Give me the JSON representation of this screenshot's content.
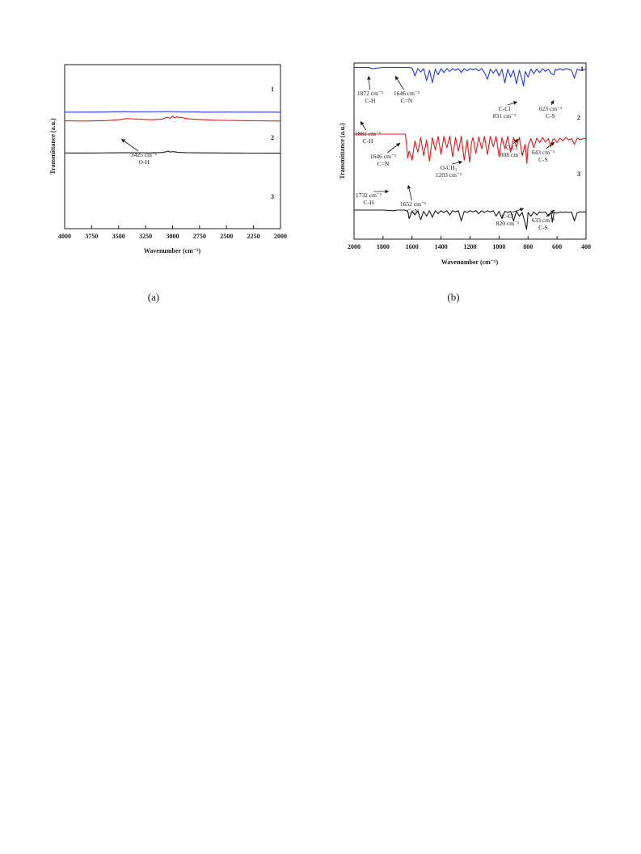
{
  "chart_data": [
    {
      "type": "line",
      "caption": "(a)",
      "xlabel": "Wavenumber (cm⁻¹)",
      "ylabel": "Transmittance (a.u.)",
      "xlim": [
        4000,
        2000
      ],
      "x_reversed": true,
      "xticks": [
        "4000",
        "3750",
        "3500",
        "3250",
        "3000",
        "2750",
        "2500",
        "2250",
        "2000"
      ],
      "grid": false,
      "series": [
        {
          "name": "1",
          "color": "#1f3be8",
          "x": [
            4000,
            3800,
            3600,
            3500,
            3450,
            3400,
            3300,
            3200,
            3100,
            3050,
            3000,
            2950,
            2900,
            2800,
            2700,
            2600,
            2500,
            2400,
            2300,
            2200,
            2100,
            2000
          ],
          "y": [
            0.86,
            0.86,
            0.857,
            0.854,
            0.852,
            0.854,
            0.856,
            0.856,
            0.852,
            0.85,
            0.853,
            0.856,
            0.857,
            0.858,
            0.86,
            0.86,
            0.859,
            0.86,
            0.86,
            0.86,
            0.86,
            0.86
          ]
        },
        {
          "name": "2",
          "color": "#e81818",
          "x": [
            4000,
            3800,
            3600,
            3500,
            3450,
            3425,
            3400,
            3300,
            3200,
            3100,
            3050,
            3020,
            3000,
            2980,
            2960,
            2940,
            2920,
            2900,
            2880,
            2850,
            2800,
            2700,
            2600,
            2500,
            2400,
            2300,
            2200,
            2100,
            2000
          ],
          "y": [
            0.495,
            0.497,
            0.49,
            0.478,
            0.465,
            0.46,
            0.462,
            0.47,
            0.478,
            0.47,
            0.44,
            0.455,
            0.42,
            0.45,
            0.43,
            0.445,
            0.44,
            0.45,
            0.455,
            0.465,
            0.47,
            0.478,
            0.485,
            0.488,
            0.49,
            0.492,
            0.494,
            0.496,
            0.497
          ]
        },
        {
          "name": "3",
          "color": "#1a1a1a",
          "x": [
            4000,
            3800,
            3600,
            3500,
            3400,
            3300,
            3200,
            3100,
            3060,
            3040,
            3020,
            3000,
            2950,
            2900,
            2850,
            2800,
            2700,
            2600,
            2500,
            2400,
            2300,
            2200,
            2100,
            2000
          ],
          "y": [
            0.18,
            0.18,
            0.178,
            0.176,
            0.176,
            0.178,
            0.178,
            0.172,
            0.16,
            0.15,
            0.165,
            0.158,
            0.17,
            0.172,
            0.175,
            0.176,
            0.178,
            0.179,
            0.18,
            0.18,
            0.181,
            0.181,
            0.182,
            0.182
          ]
        }
      ],
      "annotations": [
        {
          "lines": [
            "3425 cm⁻¹",
            "O-H"
          ],
          "x": 3425,
          "series": "2"
        }
      ]
    },
    {
      "type": "line",
      "caption": "(b)",
      "xlabel": "Wavenumber (cm⁻¹)",
      "ylabel": "Transmittance (a.u.)",
      "xlim": [
        2000,
        400
      ],
      "x_reversed": true,
      "xticks": [
        "2000",
        "1800",
        "1600",
        "1400",
        "1200",
        "1000",
        "800",
        "600",
        "400"
      ],
      "grid": false,
      "series": [
        {
          "name": "1",
          "color": "#1f3be8",
          "x": [
            2000,
            1900,
            1872,
            1800,
            1700,
            1646,
            1620,
            1600,
            1580,
            1560,
            1540,
            1520,
            1500,
            1480,
            1460,
            1440,
            1420,
            1400,
            1380,
            1360,
            1340,
            1320,
            1300,
            1280,
            1260,
            1240,
            1220,
            1200,
            1180,
            1160,
            1140,
            1120,
            1100,
            1080,
            1060,
            1040,
            1020,
            1000,
            980,
            960,
            940,
            920,
            900,
            880,
            860,
            840,
            831,
            820,
            800,
            780,
            760,
            740,
            720,
            700,
            680,
            660,
            640,
            623,
            610,
            600,
            580,
            560,
            540,
            520,
            500,
            480,
            460,
            440,
            420,
            400
          ],
          "y": [
            0.95,
            0.95,
            0.93,
            0.95,
            0.95,
            0.95,
            0.95,
            0.94,
            0.8,
            0.93,
            0.87,
            0.93,
            0.72,
            0.9,
            0.68,
            0.92,
            0.82,
            0.93,
            0.86,
            0.93,
            0.88,
            0.93,
            0.9,
            0.93,
            0.86,
            0.93,
            0.89,
            0.93,
            0.91,
            0.93,
            0.89,
            0.93,
            0.86,
            0.74,
            0.92,
            0.85,
            0.92,
            0.8,
            0.92,
            0.68,
            0.92,
            0.78,
            0.9,
            0.66,
            0.9,
            0.72,
            0.62,
            0.88,
            0.78,
            0.92,
            0.84,
            0.92,
            0.86,
            0.93,
            0.88,
            0.92,
            0.84,
            0.82,
            0.92,
            0.9,
            0.93,
            0.9,
            0.93,
            0.92,
            0.9,
            0.76,
            0.92,
            0.9,
            0.91,
            0.92
          ]
        },
        {
          "name": "2",
          "color": "#e81818",
          "x": [
            2000,
            1881,
            1800,
            1700,
            1660,
            1646,
            1630,
            1620,
            1600,
            1580,
            1560,
            1540,
            1520,
            1500,
            1480,
            1460,
            1440,
            1420,
            1400,
            1380,
            1360,
            1340,
            1320,
            1300,
            1280,
            1260,
            1240,
            1220,
            1203,
            1190,
            1180,
            1160,
            1140,
            1120,
            1100,
            1080,
            1060,
            1040,
            1020,
            1000,
            980,
            960,
            940,
            920,
            900,
            880,
            860,
            840,
            820,
            808,
            800,
            780,
            760,
            740,
            720,
            700,
            680,
            660,
            643,
            630,
            620,
            600,
            580,
            560,
            540,
            520,
            500,
            480,
            460,
            440,
            420,
            400
          ],
          "y": [
            0.7,
            0.7,
            0.7,
            0.7,
            0.7,
            0.7,
            0.28,
            0.4,
            0.24,
            0.58,
            0.38,
            0.64,
            0.32,
            0.6,
            0.22,
            0.64,
            0.42,
            0.66,
            0.34,
            0.66,
            0.46,
            0.66,
            0.3,
            0.64,
            0.4,
            0.66,
            0.24,
            0.6,
            0.2,
            0.55,
            0.64,
            0.36,
            0.65,
            0.44,
            0.66,
            0.34,
            0.66,
            0.48,
            0.66,
            0.3,
            0.64,
            0.44,
            0.66,
            0.38,
            0.64,
            0.48,
            0.64,
            0.32,
            0.52,
            0.18,
            0.5,
            0.62,
            0.46,
            0.63,
            0.55,
            0.64,
            0.56,
            0.62,
            0.48,
            0.6,
            0.62,
            0.55,
            0.63,
            0.58,
            0.64,
            0.6,
            0.62,
            0.52,
            0.63,
            0.6,
            0.62,
            0.62
          ]
        },
        {
          "name": "3",
          "color": "#1a1a1a",
          "x": [
            2000,
            1900,
            1800,
            1732,
            1700,
            1652,
            1630,
            1620,
            1600,
            1580,
            1560,
            1540,
            1520,
            1500,
            1480,
            1460,
            1440,
            1420,
            1400,
            1380,
            1360,
            1340,
            1320,
            1300,
            1280,
            1260,
            1240,
            1220,
            1200,
            1180,
            1160,
            1140,
            1120,
            1100,
            1080,
            1060,
            1040,
            1020,
            1000,
            980,
            960,
            940,
            920,
            900,
            880,
            860,
            840,
            820,
            810,
            800,
            780,
            760,
            740,
            720,
            700,
            680,
            660,
            640,
            633,
            620,
            600,
            580,
            560,
            540,
            520,
            500,
            480,
            460,
            440,
            420,
            400
          ],
          "y": [
            0.4,
            0.4,
            0.4,
            0.39,
            0.4,
            0.4,
            0.38,
            0.26,
            0.38,
            0.32,
            0.39,
            0.24,
            0.38,
            0.3,
            0.39,
            0.28,
            0.39,
            0.34,
            0.39,
            0.36,
            0.39,
            0.32,
            0.39,
            0.37,
            0.39,
            0.22,
            0.38,
            0.36,
            0.39,
            0.37,
            0.39,
            0.34,
            0.39,
            0.36,
            0.39,
            0.37,
            0.39,
            0.3,
            0.38,
            0.26,
            0.38,
            0.36,
            0.38,
            0.22,
            0.38,
            0.3,
            0.36,
            0.18,
            0.08,
            0.36,
            0.3,
            0.37,
            0.32,
            0.37,
            0.36,
            0.37,
            0.3,
            0.36,
            0.2,
            0.36,
            0.35,
            0.37,
            0.36,
            0.37,
            0.36,
            0.37,
            0.22,
            0.36,
            0.37,
            0.37,
            0.37
          ]
        }
      ],
      "annotations": [
        {
          "lines": [
            "1872 cm⁻¹",
            "C-H"
          ],
          "x": 1872,
          "series": "1"
        },
        {
          "lines": [
            "1646 cm⁻¹",
            "C=N"
          ],
          "x": 1646,
          "series": "1"
        },
        {
          "lines": [
            "C-Cl",
            "831 cm⁻¹"
          ],
          "x": 831,
          "series": "1"
        },
        {
          "lines": [
            "623 cm⁻¹",
            "C-S"
          ],
          "x": 623,
          "series": "1"
        },
        {
          "lines": [
            "1881 cm⁻¹",
            "C-H"
          ],
          "x": 1881,
          "series": "2"
        },
        {
          "lines": [
            "1646 cm⁻¹",
            "C=N"
          ],
          "x": 1646,
          "series": "2"
        },
        {
          "lines": [
            "O-CH₃",
            "1203 cm⁻¹"
          ],
          "x": 1203,
          "series": "2"
        },
        {
          "lines": [
            "C-Cl",
            "808 cm⁻¹"
          ],
          "x": 808,
          "series": "2"
        },
        {
          "lines": [
            "643 cm⁻¹",
            "C-S"
          ],
          "x": 643,
          "series": "2"
        },
        {
          "lines": [
            "1732 cm⁻¹",
            "C-H"
          ],
          "x": 1732,
          "series": "3"
        },
        {
          "lines": [
            "1652 cm⁻¹",
            "C=N"
          ],
          "x": 1652,
          "series": "3"
        },
        {
          "lines": [
            "C-Cl",
            "820 cm⁻¹"
          ],
          "x": 820,
          "series": "3"
        },
        {
          "lines": [
            "633 cm⁻¹",
            "C-S"
          ],
          "x": 633,
          "series": "3"
        }
      ]
    }
  ]
}
